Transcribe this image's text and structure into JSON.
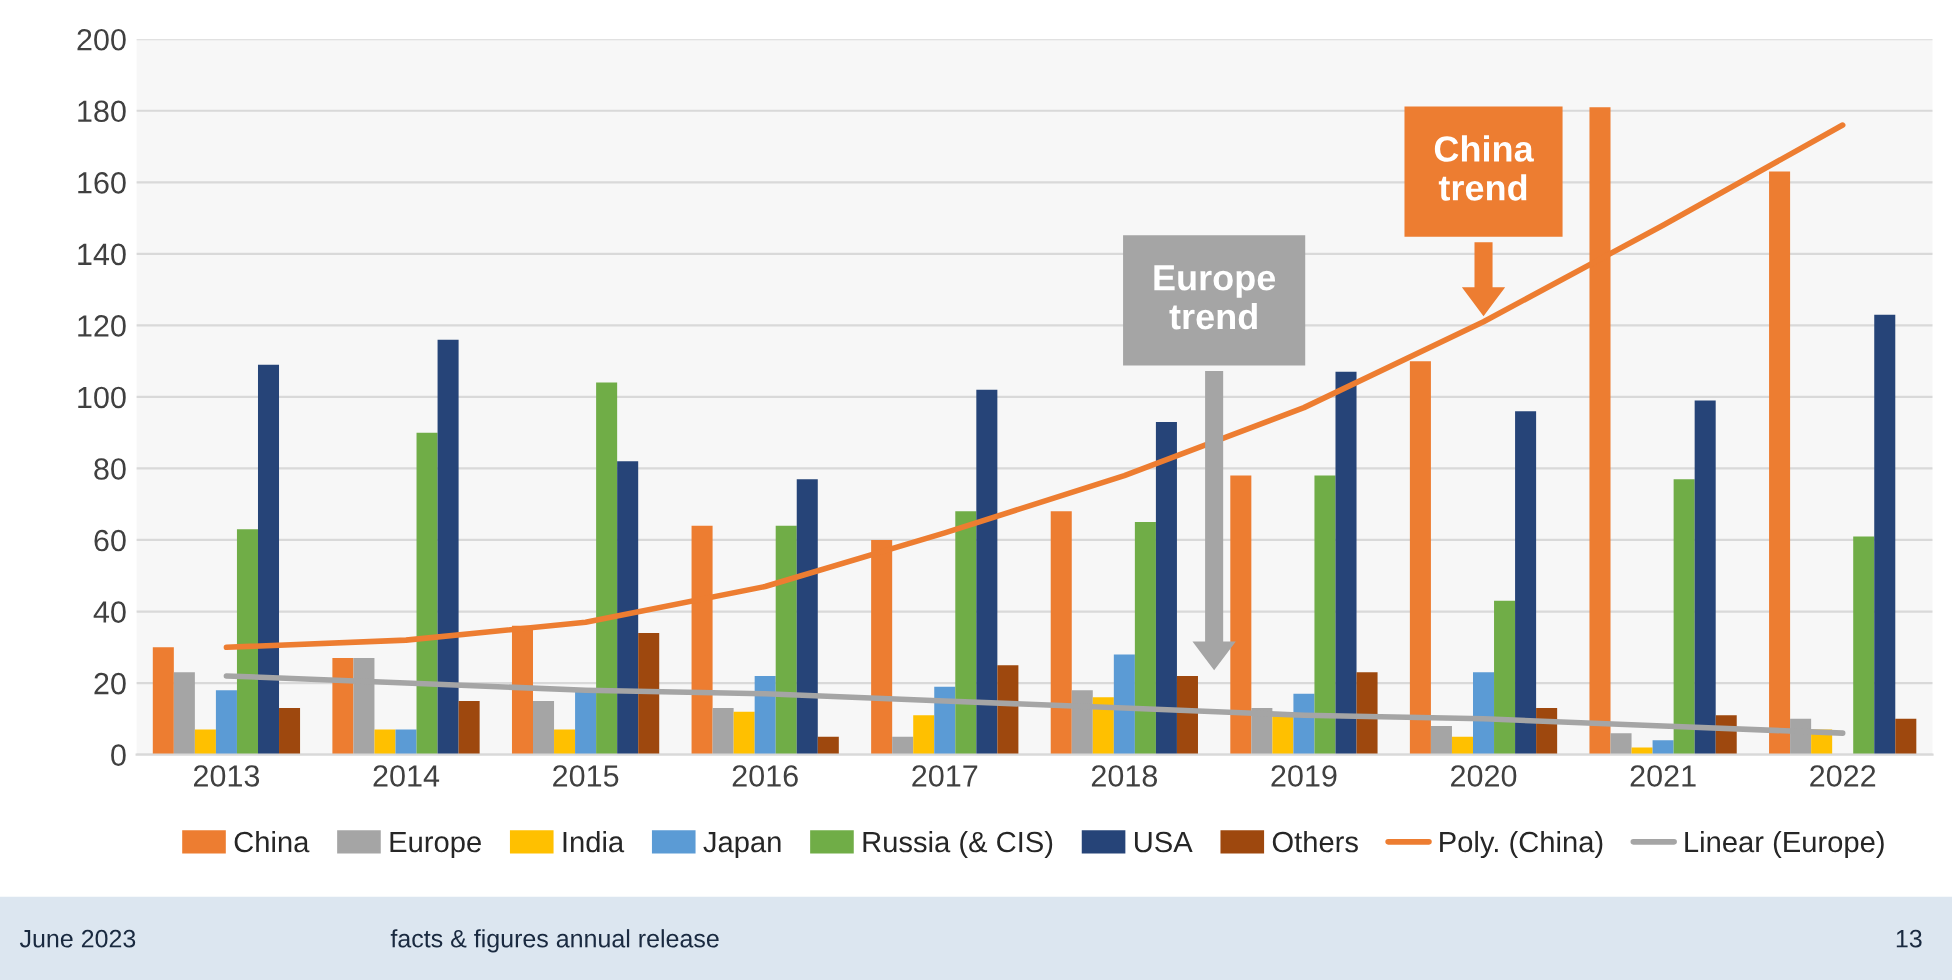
{
  "chart_data": {
    "type": "bar",
    "categories": [
      "2013",
      "2014",
      "2015",
      "2016",
      "2017",
      "2018",
      "2019",
      "2020",
      "2021",
      "2022"
    ],
    "series": [
      {
        "name": "China",
        "color": "#ed7d31",
        "values": [
          30,
          27,
          36,
          64,
          60,
          68,
          78,
          110,
          181,
          163
        ]
      },
      {
        "name": "Europe",
        "color": "#a5a5a5",
        "values": [
          23,
          27,
          15,
          13,
          5,
          18,
          13,
          8,
          6,
          10
        ]
      },
      {
        "name": "India",
        "color": "#ffc000",
        "values": [
          7,
          7,
          7,
          12,
          11,
          16,
          11,
          5,
          2,
          7
        ]
      },
      {
        "name": "Japan",
        "color": "#5b9bd5",
        "values": [
          18,
          7,
          18,
          22,
          19,
          28,
          17,
          23,
          4,
          0
        ]
      },
      {
        "name": "Russia (& CIS)",
        "color": "#70ad47",
        "values": [
          63,
          90,
          104,
          64,
          68,
          65,
          78,
          43,
          77,
          61
        ]
      },
      {
        "name": "USA",
        "color": "#264478",
        "values": [
          109,
          116,
          82,
          77,
          102,
          93,
          107,
          96,
          99,
          123
        ]
      },
      {
        "name": "Others",
        "color": "#9e480e",
        "values": [
          13,
          15,
          34,
          5,
          25,
          22,
          23,
          13,
          11,
          10
        ]
      },
      {
        "name": "Poly. (China)",
        "type": "line",
        "color": "#ed7d31",
        "values": [
          30,
          32,
          37,
          47,
          62,
          78,
          97,
          121,
          148,
          176
        ]
      },
      {
        "name": "Linear (Europe)",
        "type": "line",
        "color": "#a5a5a5",
        "values": [
          22,
          20,
          18,
          17,
          15,
          13,
          11,
          10,
          8,
          6
        ]
      }
    ],
    "ylim": [
      0,
      200
    ],
    "yticks": [
      0,
      20,
      40,
      60,
      80,
      100,
      120,
      140,
      160,
      180,
      200
    ],
    "grid": "y",
    "legend": "bottom",
    "marker": "none",
    "line_style": "solid",
    "annotations": [
      "China trend",
      "Europe trend",
      "June 2023",
      "facts & figures annual release",
      "13"
    ]
  }
}
